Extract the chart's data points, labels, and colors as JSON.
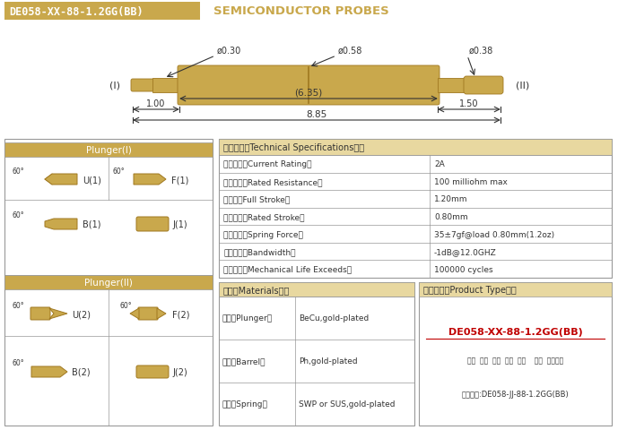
{
  "bg_color": "#ffffff",
  "header_bg": "#C9A84C",
  "header_text_color": "#ffffff",
  "title_text": "DE058-XX-88-1.2GG(BB)",
  "subtitle_text": "SEMICONDUCTOR PROBES",
  "subtitle_color": "#C9A84C",
  "table_border_color": "#999999",
  "gold_color": "#C9A84C",
  "gold_light": "#E8D8A0",
  "body_text_color": "#333333",
  "red_color": "#C00000",
  "spec_title": "技术要求（Technical Specifications）：",
  "specs": [
    [
      "额定电流（Current Rating）",
      "2A"
    ],
    [
      "额定电阻（Rated Resistance）",
      "100 milliohm max"
    ],
    [
      "满行程（Full Stroke）",
      "1.20mm"
    ],
    [
      "额定行程（Rated Stroke）",
      "0.80mm"
    ],
    [
      "额定弹力（Spring Force）",
      "35±7gf@load 0.80mm(1.2oz)"
    ],
    [
      "频率带宽（Bandwidth）",
      "-1dB@12.0GHZ"
    ],
    [
      "测试寿命（Mechanical Life Exceeds）",
      "100000 cycles"
    ]
  ],
  "mat_title": "材质（Materials）：",
  "materials": [
    [
      "针头（Plunger）",
      "BeCu,gold-plated"
    ],
    [
      "针管（Barrel）",
      "Ph,gold-plated"
    ],
    [
      "弹簧（Spring）",
      "SWP or SUS,gold-plated"
    ]
  ],
  "prod_title": "成品型号（Product Type）：",
  "prod_code": "DE058-XX-88-1.2GG(BB)",
  "prod_labels": "系列  规格  头型  巴长  弹力    镀金  针头材质",
  "prod_example": "订购举例:DE058-JJ-88-1.2GG(BB)",
  "plunger1_title": "Plunger(I)",
  "plunger2_title": "Plunger(II)",
  "dim_d030": "ø0.30",
  "dim_d058": "ø0.58",
  "dim_d038": "ø0.38",
  "dim_635": "(6.35)",
  "dim_100": "1.00",
  "dim_150": "1.50",
  "dim_885": "8.85",
  "label_I": "(I)",
  "label_II": "(II)"
}
